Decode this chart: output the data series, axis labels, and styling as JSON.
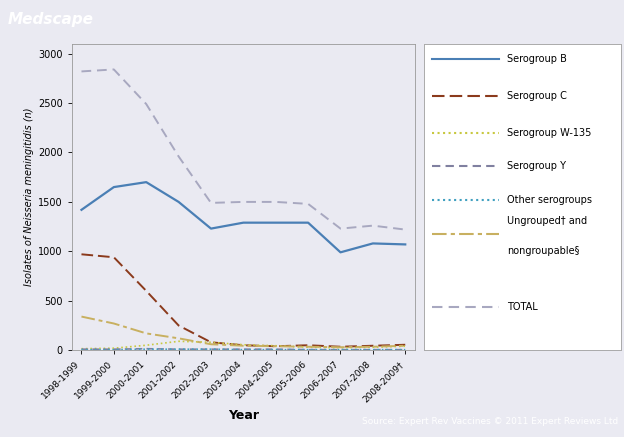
{
  "years": [
    "1998-1999",
    "1999-2000",
    "2000-2001",
    "2001-2002",
    "2002-2003",
    "2003-2004",
    "2004-2005",
    "2005-2006",
    "2006-2007",
    "2007-2008",
    "2008-2009†"
  ],
  "serogroup_B": [
    1420,
    1650,
    1700,
    1500,
    1230,
    1290,
    1290,
    1290,
    990,
    1080,
    1070
  ],
  "serogroup_C": [
    970,
    940,
    600,
    250,
    80,
    50,
    40,
    50,
    35,
    45,
    55
  ],
  "serogroup_W135": [
    15,
    20,
    50,
    90,
    80,
    55,
    45,
    30,
    25,
    30,
    40
  ],
  "serogroup_Y": [
    10,
    10,
    15,
    10,
    10,
    10,
    10,
    5,
    5,
    5,
    5
  ],
  "other_serogroups": [
    5,
    5,
    10,
    10,
    10,
    5,
    5,
    5,
    5,
    5,
    5
  ],
  "ungrouped": [
    340,
    270,
    170,
    120,
    60,
    45,
    40,
    35,
    30,
    35,
    45
  ],
  "total": [
    2820,
    2840,
    2490,
    1960,
    1490,
    1500,
    1500,
    1480,
    1230,
    1260,
    1220
  ],
  "color_B": "#4a7fb5",
  "color_C": "#8b3a1c",
  "color_W135": "#c8c840",
  "color_Y": "#8080a0",
  "color_other": "#40a0c0",
  "color_ungrouped": "#c8b060",
  "color_total": "#a8a8c0",
  "bg_color": "#eaeaf2",
  "header_color": "#2a7aaa",
  "footer_color": "#2a5a9a",
  "plot_bg": "#eaeaf2",
  "ylabel": "Isolates of Neisseria meningitidis (n)",
  "xlabel": "Year",
  "ylim": [
    0,
    3100
  ],
  "yticks": [
    0,
    500,
    1000,
    1500,
    2000,
    2500,
    3000
  ],
  "title": "Medscape",
  "footer": "Source: Expert Rev Vaccines © 2011 Expert Reviews Ltd"
}
